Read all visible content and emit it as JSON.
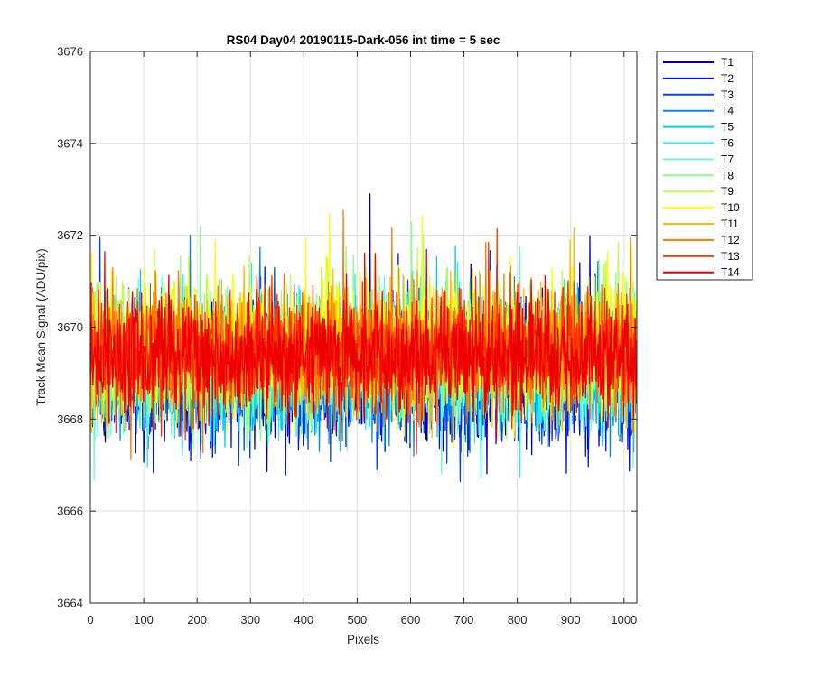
{
  "chart_data": {
    "type": "line",
    "title": "RS04 Day04 20190115-Dark-056 int time = 5 sec",
    "xlabel": "Pixels",
    "ylabel": "Track Mean Signal (ADU/pix)",
    "xlim": [
      0,
      1024
    ],
    "ylim": [
      3664,
      3676
    ],
    "xticks": [
      0,
      100,
      200,
      300,
      400,
      500,
      600,
      700,
      800,
      900,
      1000
    ],
    "yticks": [
      3664,
      3666,
      3668,
      3670,
      3672,
      3674,
      3676
    ],
    "grid": true,
    "legend_position": "outside-right",
    "n_points": 1024,
    "series": [
      {
        "name": "T1",
        "color": "#0000AA",
        "mean": 3669.0,
        "spread": 0.95
      },
      {
        "name": "T2",
        "color": "#0011DD",
        "mean": 3669.0,
        "spread": 0.95
      },
      {
        "name": "T3",
        "color": "#0044EE",
        "mean": 3669.05,
        "spread": 0.92
      },
      {
        "name": "T4",
        "color": "#0088FF",
        "mean": 3669.1,
        "spread": 0.9
      },
      {
        "name": "T5",
        "color": "#00CCFF",
        "mean": 3669.15,
        "spread": 0.9
      },
      {
        "name": "T6",
        "color": "#22EEEE",
        "mean": 3669.2,
        "spread": 0.88
      },
      {
        "name": "T7",
        "color": "#66FFCC",
        "mean": 3669.25,
        "spread": 0.88
      },
      {
        "name": "T8",
        "color": "#88FF88",
        "mean": 3669.35,
        "spread": 0.9
      },
      {
        "name": "T9",
        "color": "#BBFF44",
        "mean": 3669.45,
        "spread": 0.88
      },
      {
        "name": "T10",
        "color": "#FFFF00",
        "mean": 3669.55,
        "spread": 0.88
      },
      {
        "name": "T11",
        "color": "#FFBB00",
        "mean": 3669.5,
        "spread": 0.85
      },
      {
        "name": "T12",
        "color": "#FF7700",
        "mean": 3669.45,
        "spread": 0.82
      },
      {
        "name": "T13",
        "color": "#FF3300",
        "mean": 3669.4,
        "spread": 0.8
      },
      {
        "name": "T14",
        "color": "#EE0000",
        "mean": 3669.35,
        "spread": 0.78
      }
    ]
  }
}
